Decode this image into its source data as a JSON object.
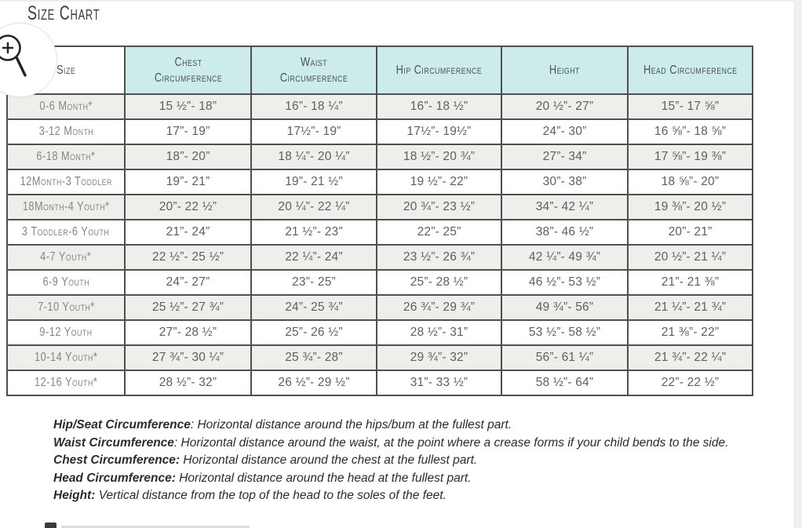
{
  "page": {
    "title": "Size Chart"
  },
  "zoom_control": {
    "icon": "magnifier-plus-icon"
  },
  "colors": {
    "header_bg": "#cbecea",
    "row_alt_bg": "#edf0ea",
    "grid_border": "#4f4f4f",
    "size_label_text": "#858585",
    "value_text": "#5c605d",
    "title_text": "#3b3b3b"
  },
  "table": {
    "headers": [
      "Size",
      "Chest Circumference",
      "Waist Circumference",
      "Hip Circumference",
      "Height",
      "Head Circumference"
    ],
    "rows": [
      [
        "0-6 Month*",
        "15 ½”- 18”",
        "16”- 18 ¼”",
        "16”- 18 ½”",
        "20 ½”- 27”",
        "15”- 17 ⅝”"
      ],
      [
        "3-12 Month",
        "17”- 19”",
        "17½”- 19”",
        "17½”- 19½”",
        "24”- 30”",
        "16 ⅝”- 18 ⅝”"
      ],
      [
        "6-18 Month*",
        "18”- 20”",
        "18 ¼”- 20 ¼”",
        "18 ½”- 20 ¾”",
        "27”- 34”",
        "17 ⅝”- 19 ⅜”"
      ],
      [
        "12Month-3 Toddler",
        "19”- 21”",
        "19”- 21 ½”",
        "19 ½”- 22”",
        "30”- 38”",
        "18 ⅝”- 20”"
      ],
      [
        "18Month-4 Youth*",
        "20”- 22 ½”",
        "20 ¼”- 22 ¼”",
        "20 ¾”- 23 ½”",
        "34”- 42 ¼”",
        "19 ⅜”- 20 ½”"
      ],
      [
        "3 Toddler-6 Youth",
        "21”- 24”",
        "21 ½”- 23”",
        "22”- 25”",
        "38”- 46 ½”",
        "20”- 21”"
      ],
      [
        "4-7 Youth*",
        "22 ½”- 25 ½”",
        "22 ¼”- 24”",
        "23 ½”- 26 ¾”",
        "42 ¼”- 49 ¾”",
        "20 ½”- 21 ¼”"
      ],
      [
        "6-9 Youth",
        "24”- 27”",
        "23”- 25”",
        "25”- 28 ½”",
        "46 ½”- 53 ½”",
        "21”- 21 ⅜”"
      ],
      [
        "7-10 Youth*",
        "25 ½”- 27 ¾”",
        "24”- 25 ¾”",
        "26 ¾”- 29 ¾”",
        "49 ¾”- 56”",
        "21 ¼”- 21 ¾”"
      ],
      [
        "9-12 Youth",
        "27”- 28 ½”",
        "25”- 26 ½”",
        "28 ½”- 31”",
        "53 ½”- 58 ½”",
        "21 ⅜”- 22”"
      ],
      [
        "10-14 Youth*",
        "27 ¾”- 30 ¼”",
        "25 ¾”- 28”",
        "29 ¾”- 32”",
        "56”- 61 ¼”",
        "21 ¾”- 22 ¼”"
      ],
      [
        "12-16 Youth*",
        "28 ½”- 32”",
        "26 ½”- 29 ½”",
        "31”- 33 ½”",
        "58 ½”- 64”",
        "22”- 22 ½”"
      ]
    ]
  },
  "notes": [
    {
      "term": "Hip/Seat Circumference",
      "definition": ": Horizontal distance around the hips/bum at the fullest part."
    },
    {
      "term": "Waist Circumference",
      "definition": ": Horizontal distance around the waist, at the point where a crease forms if your child bends to the side."
    },
    {
      "term": "Chest Circumference:",
      "definition": " Horizontal distance around the chest at the fullest part."
    },
    {
      "term": "Head Circumference:",
      "definition": " Horizontal distance around the head at the fullest part."
    },
    {
      "term": "Height:",
      "definition": " Vertical distance from the top of the head to the soles of the feet."
    }
  ]
}
